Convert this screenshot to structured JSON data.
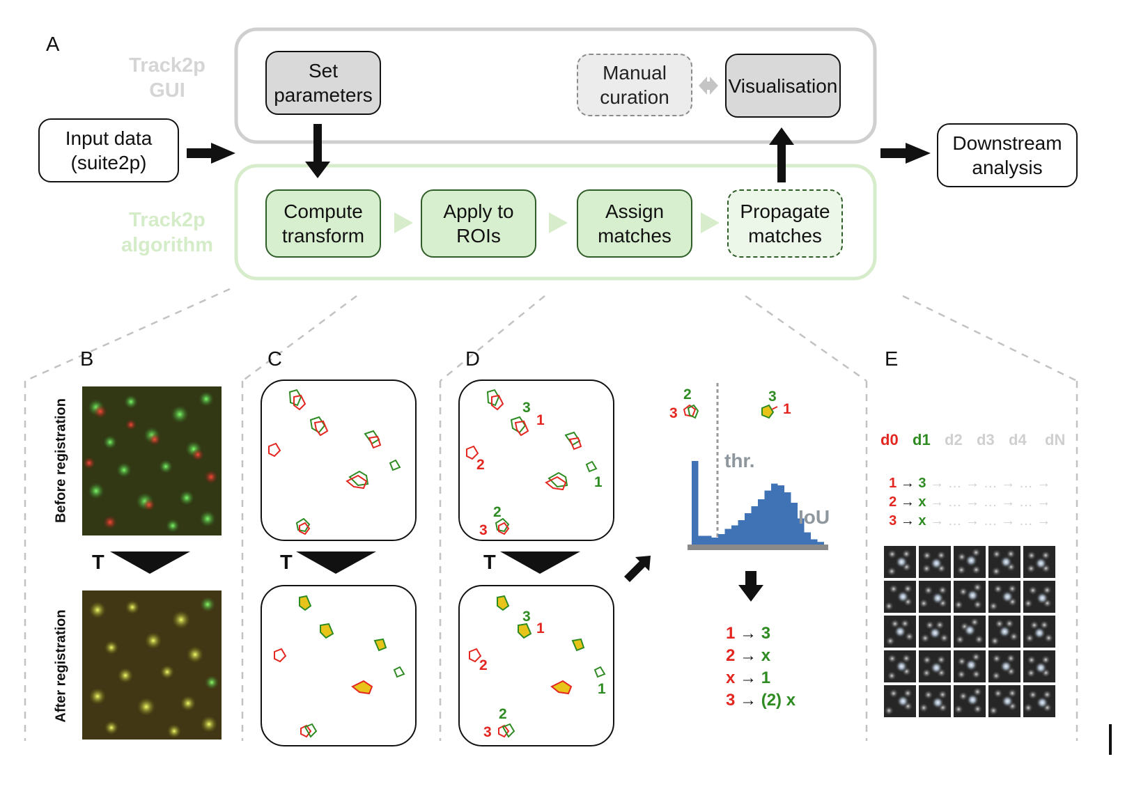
{
  "panel_labels": {
    "a": "A",
    "b": "B",
    "c": "C",
    "d": "D",
    "e": "E"
  },
  "gui_label": "Track2p\nGUI",
  "algorithm_label": "Track2p\nalgorithm",
  "boxes": {
    "input": "Input data\n(suite2p)",
    "set_params": "Set\nparameters",
    "manual": "Manual\ncuration",
    "visualisation": "Visualisation",
    "downstream": "Downstream\nanalysis",
    "compute": "Compute\ntransform",
    "apply": "Apply to\nROIs",
    "assign": "Assign\nmatches",
    "propagate": "Propagate\nmatches"
  },
  "registration": {
    "before": "Before registration",
    "after": "After registration",
    "transform": "T"
  },
  "panel_d": {
    "top_labels": [
      {
        "text": "3",
        "color": "#2e8b22"
      },
      {
        "text": "1",
        "color": "#e3261f"
      },
      {
        "text": "2",
        "color": "#e3261f"
      },
      {
        "text": "1",
        "color": "#2e8b22"
      },
      {
        "text": "2",
        "color": "#2e8b22"
      },
      {
        "text": "3",
        "color": "#e3261f"
      }
    ],
    "bottom_labels": [
      {
        "text": "3",
        "color": "#2e8b22"
      },
      {
        "text": "1",
        "color": "#e3261f"
      },
      {
        "text": "2",
        "color": "#e3261f"
      },
      {
        "text": "1",
        "color": "#2e8b22"
      },
      {
        "text": "2",
        "color": "#2e8b22"
      },
      {
        "text": "3",
        "color": "#e3261f"
      }
    ],
    "example_labels": [
      {
        "text": "2",
        "color": "#2e8b22"
      },
      {
        "text": "3",
        "color": "#e3261f"
      },
      {
        "text": "3",
        "color": "#2e8b22"
      },
      {
        "text": "1",
        "color": "#e3261f"
      }
    ]
  },
  "histogram": {
    "threshold_label": "thr.",
    "metric_label": "IoU",
    "bar_color": "#3f73b5",
    "values": [
      96,
      10,
      10,
      8,
      12,
      18,
      22,
      28,
      36,
      44,
      52,
      62,
      70,
      68,
      60,
      48,
      30,
      14,
      6,
      3
    ]
  },
  "matches": [
    {
      "left": "1",
      "left_color": "#e3261f",
      "arrow": "→",
      "right": "3",
      "right_color": "#2e8b22"
    },
    {
      "left": "2",
      "left_color": "#e3261f",
      "arrow": "→",
      "right": "x",
      "right_color": "#2e8b22"
    },
    {
      "left": "x",
      "left_color": "#e3261f",
      "arrow": "→",
      "right": "1",
      "right_color": "#2e8b22"
    },
    {
      "left": "3",
      "left_color": "#e3261f",
      "arrow": "→",
      "right": "(2) x",
      "right_color": "#2e8b22"
    }
  ],
  "days": [
    "d0",
    "d1",
    "d2",
    "d3",
    "d4",
    "dN"
  ],
  "tracks": [
    {
      "d0": "1",
      "d1": "3",
      "rest": "→ … → … → … →"
    },
    {
      "d0": "2",
      "d1": "x",
      "rest": "→ … → … → … →"
    },
    {
      "d0": "3",
      "d1": "x",
      "rest": "→ … → … → … →"
    }
  ],
  "arrow_glyph": "→",
  "colors": {
    "red": "#e3261f",
    "green": "#2e8b22",
    "gui_border": "#cccccc",
    "algo_border": "#d5ecc9",
    "dashed": "#bdbdbd"
  }
}
